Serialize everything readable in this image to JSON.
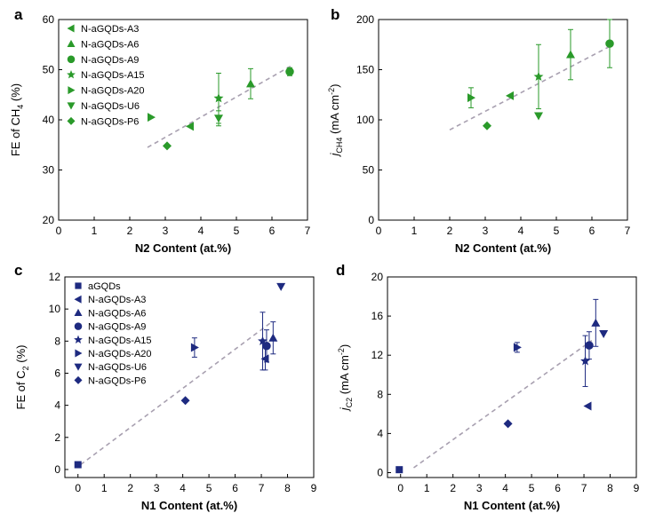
{
  "figure": {
    "colors": {
      "green": "#2a9a2a",
      "navy": "#1e2a80",
      "trend": "#a8a0b0",
      "axis": "#000000"
    }
  },
  "chart_data": [
    {
      "panel_label": "a",
      "type": "scatter",
      "xlabel": "N2 Content (at.%)",
      "ylabel_main": "FE of CH",
      "ylabel_sub": "4",
      "ylabel_tail": " (%)",
      "xlim": [
        0,
        7
      ],
      "ylim": [
        20,
        60
      ],
      "xticks": [
        0,
        1,
        2,
        3,
        4,
        5,
        6,
        7
      ],
      "yticks": [
        20,
        30,
        40,
        50,
        60
      ],
      "legend_placement": "top-left",
      "trend": {
        "x": [
          2.5,
          6.6
        ],
        "y": [
          34.5,
          51.0
        ]
      },
      "series": [
        {
          "name": "N-aGQDs-A3",
          "marker": "tri-left",
          "x": [
            3.7
          ],
          "y": [
            38.7
          ],
          "err": [
            0
          ]
        },
        {
          "name": "N-aGQDs-A6",
          "marker": "tri-up",
          "x": [
            5.4
          ],
          "y": [
            47.2
          ],
          "err": [
            3
          ]
        },
        {
          "name": "N-aGQDs-A9",
          "marker": "circle",
          "x": [
            6.5
          ],
          "y": [
            49.6
          ],
          "err": [
            0.8
          ]
        },
        {
          "name": "N-aGQDs-A15",
          "marker": "star",
          "x": [
            4.5
          ],
          "y": [
            44.3
          ],
          "err": [
            5
          ]
        },
        {
          "name": "N-aGQDs-A20",
          "marker": "tri-right",
          "x": [
            2.6
          ],
          "y": [
            40.5
          ],
          "err": [
            0
          ]
        },
        {
          "name": "N-aGQDs-U6",
          "marker": "tri-down",
          "x": [
            4.5
          ],
          "y": [
            40.3
          ],
          "err": [
            1.5
          ]
        },
        {
          "name": "N-aGQDs-P6",
          "marker": "diamond",
          "x": [
            3.05
          ],
          "y": [
            34.8
          ],
          "err": [
            0
          ]
        }
      ]
    },
    {
      "panel_label": "b",
      "type": "scatter",
      "xlabel": "N2 Content (at.%)",
      "ylabel_main": "j",
      "ylabel_sub": "CH4",
      "ylabel_tail": " (mA cm",
      "ylabel_sup": "-2",
      "ylabel_end": ")",
      "xlim": [
        0,
        7
      ],
      "ylim": [
        0,
        200
      ],
      "xticks": [
        0,
        1,
        2,
        3,
        4,
        5,
        6,
        7
      ],
      "yticks": [
        0,
        50,
        100,
        150,
        200
      ],
      "trend": {
        "x": [
          2.0,
          6.6
        ],
        "y": [
          90,
          175
        ]
      },
      "series": [
        {
          "name": "N-aGQDs-A3",
          "marker": "tri-left",
          "x": [
            3.7
          ],
          "y": [
            124
          ],
          "err": [
            0
          ]
        },
        {
          "name": "N-aGQDs-A6",
          "marker": "tri-up",
          "x": [
            5.4
          ],
          "y": [
            165
          ],
          "err": [
            25
          ]
        },
        {
          "name": "N-aGQDs-A9",
          "marker": "circle",
          "x": [
            6.5
          ],
          "y": [
            176
          ],
          "err": [
            24
          ]
        },
        {
          "name": "N-aGQDs-A15",
          "marker": "star",
          "x": [
            4.5
          ],
          "y": [
            143
          ],
          "err": [
            32
          ]
        },
        {
          "name": "N-aGQDs-A20",
          "marker": "tri-right",
          "x": [
            2.6
          ],
          "y": [
            122
          ],
          "err": [
            10
          ]
        },
        {
          "name": "N-aGQDs-U6",
          "marker": "tri-down",
          "x": [
            4.5
          ],
          "y": [
            104
          ],
          "err": [
            0
          ]
        },
        {
          "name": "N-aGQDs-P6",
          "marker": "diamond",
          "x": [
            3.05
          ],
          "y": [
            94
          ],
          "err": [
            0
          ]
        }
      ]
    },
    {
      "panel_label": "c",
      "type": "scatter",
      "xlabel": "N1 Content (at.%)",
      "ylabel_main": "FE of C",
      "ylabel_sub": "2",
      "ylabel_tail": " (%)",
      "xlim": [
        -0.5,
        9
      ],
      "ylim": [
        -0.5,
        12
      ],
      "xticks": [
        0,
        1,
        2,
        3,
        4,
        5,
        6,
        7,
        8,
        9
      ],
      "yticks": [
        0,
        2,
        4,
        6,
        8,
        10,
        12
      ],
      "legend_placement": "top-left",
      "trend": {
        "x": [
          0.1,
          7.4
        ],
        "y": [
          0.3,
          9.2
        ]
      },
      "series": [
        {
          "name": "aGQDs",
          "marker": "square",
          "x": [
            0
          ],
          "y": [
            0.3
          ],
          "err": [
            0
          ]
        },
        {
          "name": "N-aGQDs-A3",
          "marker": "tri-left",
          "x": [
            7.15
          ],
          "y": [
            6.9
          ],
          "err": [
            0.7
          ]
        },
        {
          "name": "N-aGQDs-A6",
          "marker": "tri-up",
          "x": [
            7.45
          ],
          "y": [
            8.2
          ],
          "err": [
            1.0
          ]
        },
        {
          "name": "N-aGQDs-A9",
          "marker": "circle",
          "x": [
            7.2
          ],
          "y": [
            7.7
          ],
          "err": [
            1.0
          ]
        },
        {
          "name": "N-aGQDs-A15",
          "marker": "star",
          "x": [
            7.05
          ],
          "y": [
            8.0
          ],
          "err": [
            1.8
          ]
        },
        {
          "name": "N-aGQDs-A20",
          "marker": "tri-right",
          "x": [
            4.45
          ],
          "y": [
            7.6
          ],
          "err": [
            0.6
          ]
        },
        {
          "name": "N-aGQDs-U6",
          "marker": "tri-down",
          "x": [
            7.75
          ],
          "y": [
            11.4
          ],
          "err": [
            0
          ]
        },
        {
          "name": "N-aGQDs-P6",
          "marker": "diamond",
          "x": [
            4.1
          ],
          "y": [
            4.3
          ],
          "err": [
            0
          ]
        }
      ]
    },
    {
      "panel_label": "d",
      "type": "scatter",
      "xlabel": "N1 Content (at.%)",
      "ylabel_main": "j",
      "ylabel_sub": "C2",
      "ylabel_tail": " (mA cm",
      "ylabel_sup": "-2",
      "ylabel_end": ")",
      "xlim": [
        -0.5,
        9
      ],
      "ylim": [
        -0.5,
        20
      ],
      "xticks": [
        0,
        1,
        2,
        3,
        4,
        5,
        6,
        7,
        8,
        9
      ],
      "yticks": [
        0,
        4,
        8,
        12,
        16,
        20
      ],
      "trend": {
        "x": [
          0.5,
          7.3
        ],
        "y": [
          0.5,
          13.5
        ]
      },
      "series": [
        {
          "name": "aGQDs",
          "marker": "square",
          "x": [
            -0.05
          ],
          "y": [
            0.3
          ],
          "err": [
            0
          ]
        },
        {
          "name": "N-aGQDs-A3",
          "marker": "tri-left",
          "x": [
            7.15
          ],
          "y": [
            6.8
          ],
          "err": [
            0
          ]
        },
        {
          "name": "N-aGQDs-A6",
          "marker": "tri-up",
          "x": [
            7.45
          ],
          "y": [
            15.3
          ],
          "err": [
            2.4
          ]
        },
        {
          "name": "N-aGQDs-A9",
          "marker": "circle",
          "x": [
            7.2
          ],
          "y": [
            13.0
          ],
          "err": [
            1.4
          ]
        },
        {
          "name": "N-aGQDs-A15",
          "marker": "star",
          "x": [
            7.05
          ],
          "y": [
            11.4
          ],
          "err": [
            2.6
          ]
        },
        {
          "name": "N-aGQDs-A20",
          "marker": "tri-right",
          "x": [
            4.45
          ],
          "y": [
            12.8
          ],
          "err": [
            0.5
          ]
        },
        {
          "name": "N-aGQDs-U6",
          "marker": "tri-down",
          "x": [
            7.75
          ],
          "y": [
            14.2
          ],
          "err": [
            0
          ]
        },
        {
          "name": "N-aGQDs-P6",
          "marker": "diamond",
          "x": [
            4.1
          ],
          "y": [
            5.0
          ],
          "err": [
            0
          ]
        }
      ]
    }
  ]
}
